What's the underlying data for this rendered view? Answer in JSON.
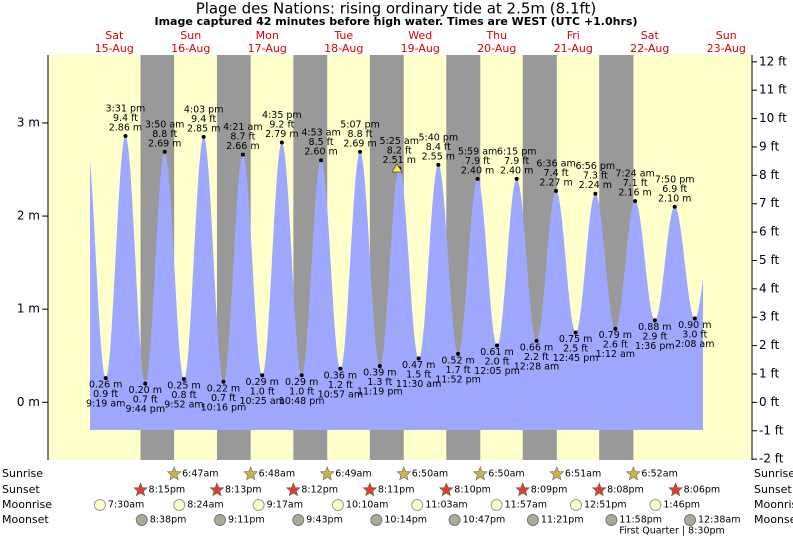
{
  "chart_data": {
    "type": "tide",
    "title": "Plage des Nations: rising  ordinary tide at 2.5m (8.1ft)",
    "subtitle": "Image captured 42 minutes before high water. Times are WEST (UTC +1.0hrs)",
    "ylim": [
      -0.62,
      3.73
    ],
    "yticks": [
      {
        "value": 0,
        "label": "0 m"
      },
      {
        "value": 1,
        "label": "1 m"
      },
      {
        "value": 2,
        "label": "2 m"
      },
      {
        "value": 3,
        "label": "3 m"
      }
    ],
    "y2lim": [
      -2.03,
      12.24
    ],
    "y2ticks": [
      {
        "value": -2,
        "label": "-2 ft"
      },
      {
        "value": -1,
        "label": "-1 ft"
      },
      {
        "value": 0,
        "label": "0 ft"
      },
      {
        "value": 1,
        "label": "1 ft"
      },
      {
        "value": 2,
        "label": "2 ft"
      },
      {
        "value": 3,
        "label": "3 ft"
      },
      {
        "value": 4,
        "label": "4 ft"
      },
      {
        "value": 5,
        "label": "5 ft"
      },
      {
        "value": 6,
        "label": "6 ft"
      },
      {
        "value": 7,
        "label": "7 ft"
      },
      {
        "value": 8,
        "label": "8 ft"
      },
      {
        "value": 9,
        "label": "9 ft"
      },
      {
        "value": 10,
        "label": "10 ft"
      },
      {
        "value": 11,
        "label": "11 ft"
      },
      {
        "value": 12,
        "label": "12 ft"
      }
    ],
    "rows": [
      "Sunrise",
      "Sunset",
      "Moonrise",
      "Moonset"
    ],
    "moon_phase": "First Quarter | 8:30pm",
    "days": [
      {
        "day": "Sat",
        "date": "15-Aug",
        "sunrise": null,
        "sunset": "8:15pm",
        "moonrise": "7:30am",
        "moonset": "8:38pm",
        "tides": [
          {
            "time": "9:19 am",
            "ft": {
              "value": 0.9,
              "label": "0.9 ft"
            },
            "m": {
              "value": 0.26,
              "label": "0.26 m"
            }
          },
          {
            "time": "3:31 pm",
            "ft": {
              "value": 9.4,
              "label": "9.4 ft"
            },
            "m": {
              "value": 2.86,
              "label": "2.86 m"
            }
          },
          {
            "time": "9:44 pm",
            "ft": {
              "value": 0.7,
              "label": "0.7 ft"
            },
            "m": {
              "value": 0.2,
              "label": "0.20 m"
            }
          }
        ]
      },
      {
        "day": "Sun",
        "date": "16-Aug",
        "sunrise": "6:47am",
        "sunset": "8:13pm",
        "moonrise": "8:24am",
        "moonset": "9:11pm",
        "tides": [
          {
            "time": "3:50 am",
            "ft": {
              "value": 8.8,
              "label": "8.8 ft"
            },
            "m": {
              "value": 2.69,
              "label": "2.69 m"
            }
          },
          {
            "time": "9:52 am",
            "ft": {
              "value": 0.8,
              "label": "0.8 ft"
            },
            "m": {
              "value": 0.25,
              "label": "0.25 m"
            }
          },
          {
            "time": "4:03 pm",
            "ft": {
              "value": 9.4,
              "label": "9.4 ft"
            },
            "m": {
              "value": 2.85,
              "label": "2.85 m"
            }
          },
          {
            "time": "10:16 pm",
            "ft": {
              "value": 0.7,
              "label": "0.7 ft"
            },
            "m": {
              "value": 0.22,
              "label": "0.22 m"
            }
          }
        ]
      },
      {
        "day": "Mon",
        "date": "17-Aug",
        "sunrise": "6:48am",
        "sunset": "8:12pm",
        "moonrise": "9:17am",
        "moonset": "9:43pm",
        "tides": [
          {
            "time": "4:21 am",
            "ft": {
              "value": 8.7,
              "label": "8.7 ft"
            },
            "m": {
              "value": 2.66,
              "label": "2.66 m"
            }
          },
          {
            "time": "10:25 am",
            "ft": {
              "value": 1.0,
              "label": "1.0 ft"
            },
            "m": {
              "value": 0.29,
              "label": "0.29 m"
            }
          },
          {
            "time": "4:35 pm",
            "ft": {
              "value": 9.2,
              "label": "9.2 ft"
            },
            "m": {
              "value": 2.79,
              "label": "2.79 m"
            }
          },
          {
            "time": "10:48 pm",
            "ft": {
              "value": 1.0,
              "label": "1.0 ft"
            },
            "m": {
              "value": 0.29,
              "label": "0.29 m"
            }
          }
        ]
      },
      {
        "day": "Tue",
        "date": "18-Aug",
        "sunrise": "6:49am",
        "sunset": "8:11pm",
        "moonrise": "10:10am",
        "moonset": "10:14pm",
        "tides": [
          {
            "time": "4:53 am",
            "ft": {
              "value": 8.5,
              "label": "8.5 ft"
            },
            "m": {
              "value": 2.6,
              "label": "2.60 m"
            }
          },
          {
            "time": "10:57 am",
            "ft": {
              "value": 1.2,
              "label": "1.2 ft"
            },
            "m": {
              "value": 0.36,
              "label": "0.36 m"
            }
          },
          {
            "time": "5:07 pm",
            "ft": {
              "value": 8.8,
              "label": "8.8 ft"
            },
            "m": {
              "value": 2.69,
              "label": "2.69 m"
            }
          },
          {
            "time": "11:19 pm",
            "ft": {
              "value": 1.3,
              "label": "1.3 ft"
            },
            "m": {
              "value": 0.39,
              "label": "0.39 m"
            }
          }
        ]
      },
      {
        "day": "Wed",
        "date": "19-Aug",
        "sunrise": "6:50am",
        "sunset": "8:10pm",
        "moonrise": "11:03am",
        "moonset": "10:47pm",
        "tides": [
          {
            "time": "5:25 am",
            "ft": {
              "value": 8.2,
              "label": "8.2 ft"
            },
            "m": {
              "value": 2.51,
              "label": "2.51 m"
            }
          },
          {
            "time": "11:30 am",
            "ft": {
              "value": 1.5,
              "label": "1.5 ft"
            },
            "m": {
              "value": 0.47,
              "label": "0.47 m"
            }
          },
          {
            "time": "5:40 pm",
            "ft": {
              "value": 8.4,
              "label": "8.4 ft"
            },
            "m": {
              "value": 2.55,
              "label": "2.55 m"
            }
          },
          {
            "time": "11:52 pm",
            "ft": {
              "value": 1.7,
              "label": "1.7 ft"
            },
            "m": {
              "value": 0.52,
              "label": "0.52 m"
            }
          }
        ]
      },
      {
        "day": "Thu",
        "date": "20-Aug",
        "sunrise": "6:50am",
        "sunset": "8:09pm",
        "moonrise": "11:57am",
        "moonset": "11:21pm",
        "tides": [
          {
            "time": "5:59 am",
            "ft": {
              "value": 7.9,
              "label": "7.9 ft"
            },
            "m": {
              "value": 2.4,
              "label": "2.40 m"
            }
          },
          {
            "time": "12:05 pm",
            "ft": {
              "value": 2.0,
              "label": "2.0 ft"
            },
            "m": {
              "value": 0.61,
              "label": "0.61 m"
            }
          },
          {
            "time": "6:15 pm",
            "ft": {
              "value": 7.9,
              "label": "7.9 ft"
            },
            "m": {
              "value": 2.4,
              "label": "2.40 m"
            }
          }
        ]
      },
      {
        "day": "Fri",
        "date": "21-Aug",
        "sunrise": "6:51am",
        "sunset": "8:08pm",
        "moonrise": "12:51pm",
        "moonset": "11:58pm",
        "tides": [
          {
            "time": "12:28 am",
            "ft": {
              "value": 2.2,
              "label": "2.2 ft"
            },
            "m": {
              "value": 0.66,
              "label": "0.66 m"
            }
          },
          {
            "time": "6:36 am",
            "ft": {
              "value": 7.4,
              "label": "7.4 ft"
            },
            "m": {
              "value": 2.27,
              "label": "2.27 m"
            }
          },
          {
            "time": "12:45 pm",
            "ft": {
              "value": 2.5,
              "label": "2.5 ft"
            },
            "m": {
              "value": 0.75,
              "label": "0.75 m"
            }
          },
          {
            "time": "6:56 pm",
            "ft": {
              "value": 7.3,
              "label": "7.3 ft"
            },
            "m": {
              "value": 2.24,
              "label": "2.24 m"
            }
          }
        ]
      },
      {
        "day": "Sat",
        "date": "22-Aug",
        "sunrise": "6:52am",
        "sunset": "8:06pm",
        "moonrise": "1:46pm",
        "moonset": null,
        "tides": [
          {
            "time": "1:12 am",
            "ft": {
              "value": 2.6,
              "label": "2.6 ft"
            },
            "m": {
              "value": 0.79,
              "label": "0.79 m"
            }
          },
          {
            "time": "7:24 am",
            "ft": {
              "value": 7.1,
              "label": "7.1 ft"
            },
            "m": {
              "value": 2.16,
              "label": "2.16 m"
            }
          },
          {
            "time": "1:36 pm",
            "ft": {
              "value": 2.9,
              "label": "2.9 ft"
            },
            "m": {
              "value": 0.88,
              "label": "0.88 m"
            }
          },
          {
            "time": "7:50 pm",
            "ft": {
              "value": 6.9,
              "label": "6.9 ft"
            },
            "m": {
              "value": 2.1,
              "label": "2.10 m"
            }
          }
        ]
      },
      {
        "day": "Sun",
        "date": "23-Aug",
        "sunrise": null,
        "sunset": null,
        "moonrise": null,
        "moonset": "12:38am",
        "tides": [
          {
            "time": "2:08 am",
            "ft": {
              "value": 3.0,
              "label": "3.0 ft"
            },
            "m": {
              "value": 0.9,
              "label": "0.90 m"
            }
          }
        ]
      }
    ]
  }
}
